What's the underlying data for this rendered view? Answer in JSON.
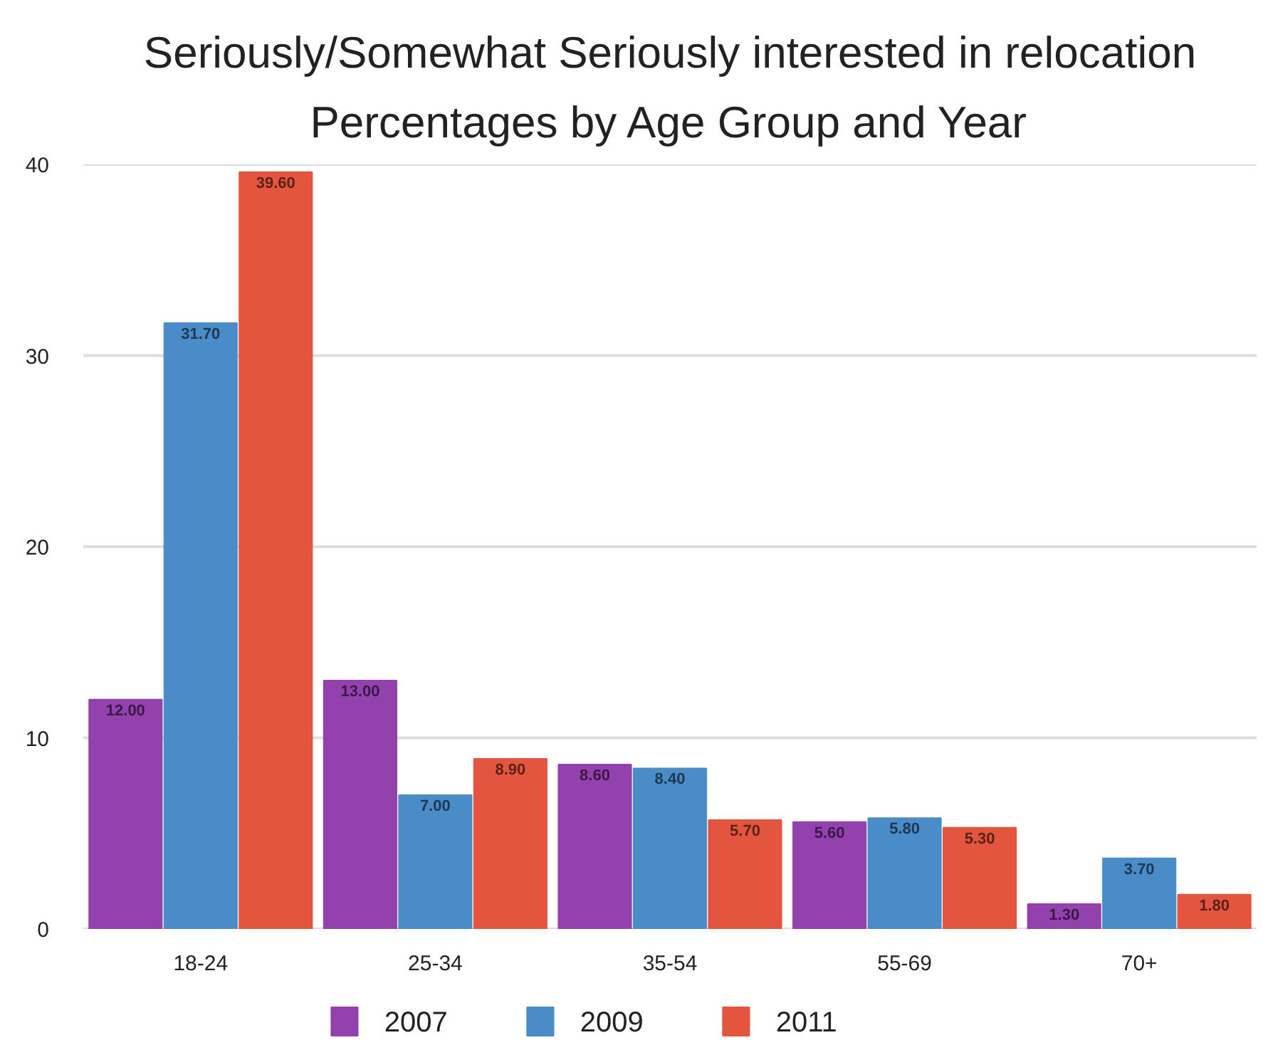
{
  "chart_data": {
    "type": "bar",
    "title": "Seriously/Somewhat Seriously interested in relocation",
    "subtitle": "Percentages by Age Group and Year",
    "categories": [
      "18-24",
      "25-34",
      "35-54",
      "55-69",
      "70+"
    ],
    "series": [
      {
        "name": "2007",
        "color": "#9341ad",
        "values": [
          12.0,
          13.0,
          8.6,
          5.6,
          1.3
        ],
        "value_labels": [
          "12.00",
          "13.00",
          "8.60",
          "5.60",
          "1.30"
        ]
      },
      {
        "name": "2009",
        "color": "#4a8cc8",
        "values": [
          31.7,
          7.0,
          8.4,
          5.8,
          3.7
        ],
        "value_labels": [
          "31.70",
          "7.00",
          "8.40",
          "5.80",
          "3.70"
        ]
      },
      {
        "name": "2011",
        "color": "#e4553f",
        "values": [
          39.6,
          8.9,
          5.7,
          5.3,
          1.8
        ],
        "value_labels": [
          "39.60",
          "8.90",
          "5.70",
          "5.30",
          "1.80"
        ]
      }
    ],
    "ylim": [
      0,
      40
    ],
    "yticks": [
      0,
      10,
      20,
      30,
      40
    ],
    "grid": "y",
    "legend": "bottom"
  }
}
